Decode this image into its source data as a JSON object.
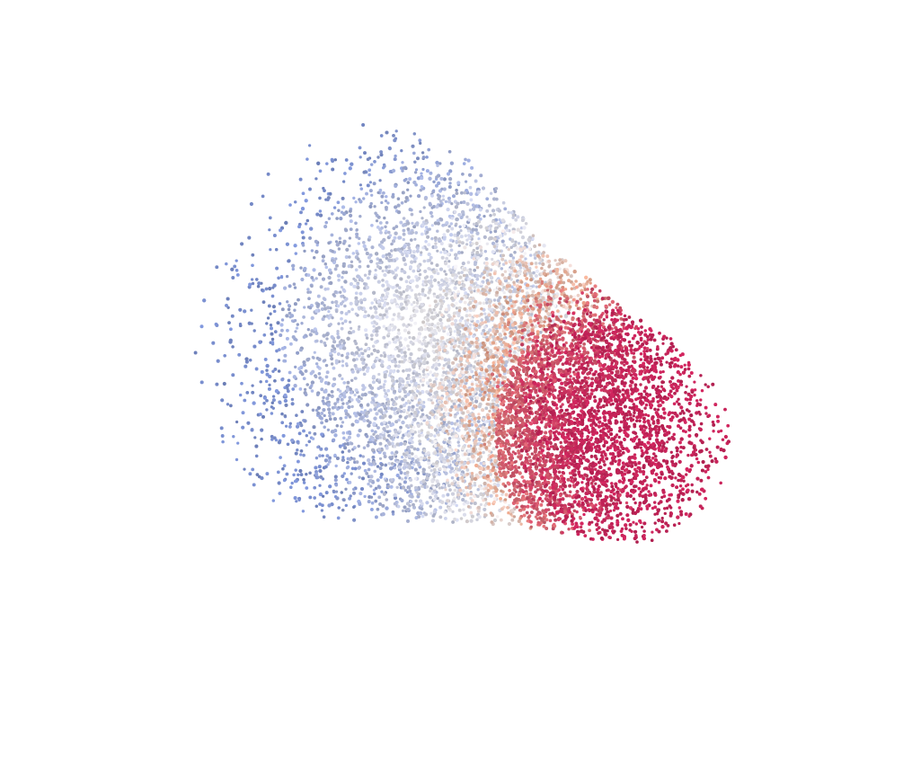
{
  "scene": {
    "subject": "point-cloud",
    "shape": "truncated-cone",
    "background_color": "#ffffff",
    "colormap": {
      "low": "#7a8fcf",
      "mid": "#e9e7ea",
      "warm": "#e8a58a",
      "high": "#c7245a"
    }
  }
}
